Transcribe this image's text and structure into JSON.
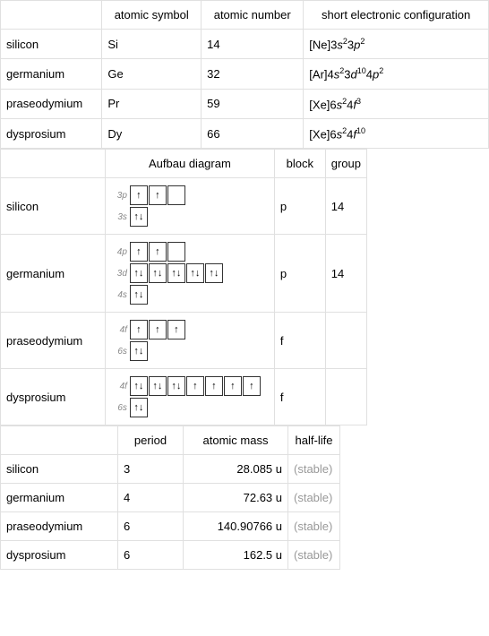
{
  "table1": {
    "headers": [
      "",
      "atomic symbol",
      "atomic number",
      "short electronic configuration"
    ],
    "rows": [
      {
        "name": "silicon",
        "symbol": "Si",
        "number": "14",
        "config_core": "[Ne]",
        "config_parts": [
          [
            "3",
            "s",
            "2"
          ],
          [
            "3",
            "p",
            "2"
          ]
        ]
      },
      {
        "name": "germanium",
        "symbol": "Ge",
        "number": "32",
        "config_core": "[Ar]",
        "config_parts": [
          [
            "4",
            "s",
            "2"
          ],
          [
            "3",
            "d",
            "10"
          ],
          [
            "4",
            "p",
            "2"
          ]
        ]
      },
      {
        "name": "praseodymium",
        "symbol": "Pr",
        "number": "59",
        "config_core": "[Xe]",
        "config_parts": [
          [
            "6",
            "s",
            "2"
          ],
          [
            "4",
            "f",
            "3"
          ]
        ]
      },
      {
        "name": "dysprosium",
        "symbol": "Dy",
        "number": "66",
        "config_core": "[Xe]",
        "config_parts": [
          [
            "6",
            "s",
            "2"
          ],
          [
            "4",
            "f",
            "10"
          ]
        ]
      }
    ]
  },
  "table2": {
    "headers": [
      "",
      "Aufbau diagram",
      "block",
      "group"
    ],
    "rows": [
      {
        "name": "silicon",
        "block": "p",
        "group": "14",
        "orbitals": [
          {
            "label": "3p",
            "boxes": [
              "u",
              "u",
              ""
            ]
          },
          {
            "label": "3s",
            "boxes": [
              "ud"
            ]
          }
        ]
      },
      {
        "name": "germanium",
        "block": "p",
        "group": "14",
        "orbitals": [
          {
            "label": "4p",
            "boxes": [
              "u",
              "u",
              ""
            ]
          },
          {
            "label": "3d",
            "boxes": [
              "ud",
              "ud",
              "ud",
              "ud",
              "ud"
            ]
          },
          {
            "label": "4s",
            "boxes": [
              "ud"
            ]
          }
        ]
      },
      {
        "name": "praseodymium",
        "block": "f",
        "group": "",
        "orbitals": [
          {
            "label": "4f",
            "boxes": [
              "u",
              "u",
              "u"
            ]
          },
          {
            "label": "6s",
            "boxes": [
              "ud"
            ]
          }
        ]
      },
      {
        "name": "dysprosium",
        "block": "f",
        "group": "",
        "orbitals": [
          {
            "label": "4f",
            "boxes": [
              "ud",
              "ud",
              "ud",
              "u",
              "u",
              "u",
              "u"
            ]
          },
          {
            "label": "6s",
            "boxes": [
              "ud"
            ]
          }
        ]
      }
    ]
  },
  "table3": {
    "headers": [
      "",
      "period",
      "atomic mass",
      "half-life"
    ],
    "rows": [
      {
        "name": "silicon",
        "period": "3",
        "mass": "28.085 u",
        "halflife": "(stable)"
      },
      {
        "name": "germanium",
        "period": "4",
        "mass": "72.63 u",
        "halflife": "(stable)"
      },
      {
        "name": "praseodymium",
        "period": "6",
        "mass": "140.90766 u",
        "halflife": "(stable)"
      },
      {
        "name": "dysprosium",
        "period": "6",
        "mass": "162.5 u",
        "halflife": "(stable)"
      }
    ]
  },
  "col_widths": {
    "t1_c1": "118px",
    "t1_c2": "116px",
    "t1_c3": "122px",
    "t1_c4": "184px",
    "t2_c1": "118px",
    "t2_c2": "182px",
    "t2_c3": "54px",
    "t2_c4": "52px",
    "t3_c1": "118px",
    "t3_c2": "60px",
    "t3_c3": "104px",
    "t3_c4": "64px"
  }
}
